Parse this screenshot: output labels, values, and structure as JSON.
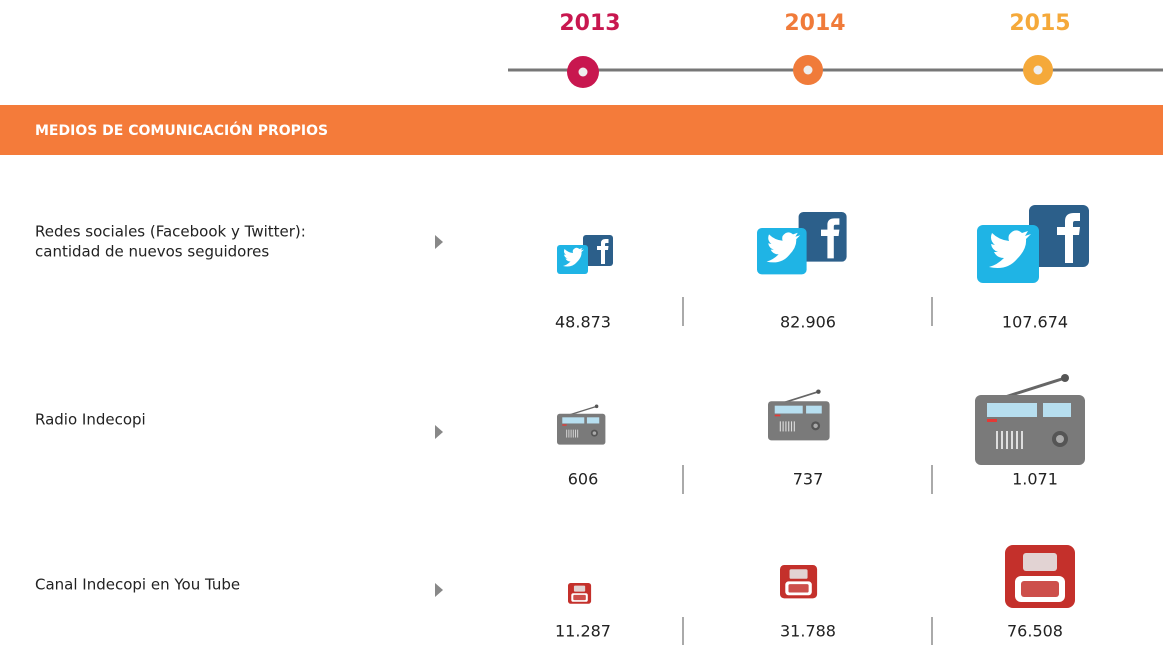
{
  "years": [
    "2013",
    "2014",
    "2015"
  ],
  "section": "MEDIOS DE COMUNICACIÓN PROPIOS",
  "rows": [
    {
      "label": [
        "Redes sociales (Facebook y Twitter):",
        "cantidad de nuevos seguidores"
      ],
      "values": [
        "48.873",
        "82.906",
        "107.674"
      ]
    },
    {
      "label": [
        "Radio Indecopi"
      ],
      "values": [
        "606",
        "737",
        "1.071"
      ]
    },
    {
      "label": [
        "Canal Indecopi en You Tube"
      ],
      "values": [
        "11.287",
        "31.788",
        "76.508"
      ]
    }
  ]
}
